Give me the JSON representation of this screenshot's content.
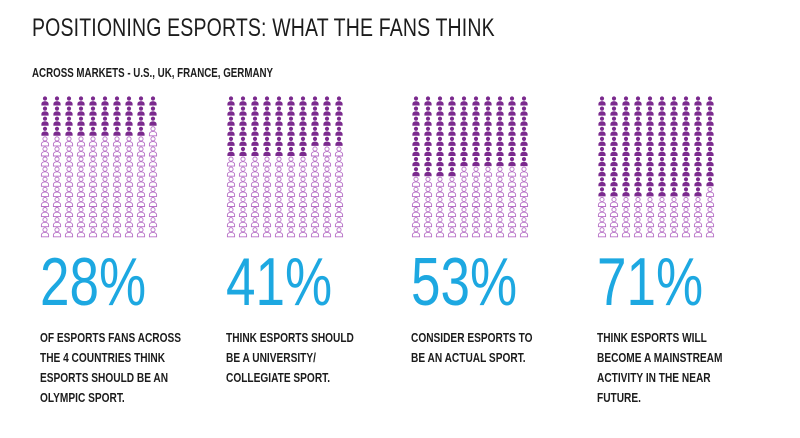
{
  "header": {
    "title": "POSITIONING ESPORTS: WHAT THE FANS THINK",
    "subtitle": "ACROSS MARKETS - U.S., UK, FRANCE, GERMANY"
  },
  "colors": {
    "filled": "#7b2a8e",
    "outline": "#b66fc6",
    "stat": "#1da8e1",
    "text": "#1c1c1c"
  },
  "chart_data": {
    "type": "bar",
    "categories": [
      "OF ESPORTS FANS ACROSS THE 4 COUNTRIES THINK ESPORTS SHOULD BE AN OLYMPIC SPORT.",
      "THINK ESPORTS SHOULD BE A UNIVERSITY/ COLLEGIATE SPORT.",
      "CONSIDER ESPORTS TO BE AN ACTUAL SPORT.",
      "THINK ESPORTS WILL BECOME A MAINSTREAM ACTIVITY IN THE NEAR FUTURE."
    ],
    "values": [
      28,
      41,
      53,
      71
    ],
    "unit": "%",
    "icon_grid": {
      "columns": 10,
      "rows": 14
    }
  },
  "panels": [
    {
      "stat": "28%",
      "lines": [
        "OF ESPORTS FANS ACROSS",
        "THE 4 COUNTRIES THINK",
        "ESPORTS SHOULD BE AN",
        "OLYMPIC SPORT."
      ]
    },
    {
      "stat": "41%",
      "lines": [
        "THINK ESPORTS SHOULD",
        "BE A UNIVERSITY/",
        "COLLEGIATE SPORT."
      ]
    },
    {
      "stat": "53%",
      "lines": [
        "CONSIDER ESPORTS TO",
        "BE AN ACTUAL SPORT."
      ]
    },
    {
      "stat": "71%",
      "lines": [
        "THINK ESPORTS WILL",
        "BECOME A MAINSTREAM",
        "ACTIVITY IN THE NEAR",
        "FUTURE."
      ]
    }
  ]
}
